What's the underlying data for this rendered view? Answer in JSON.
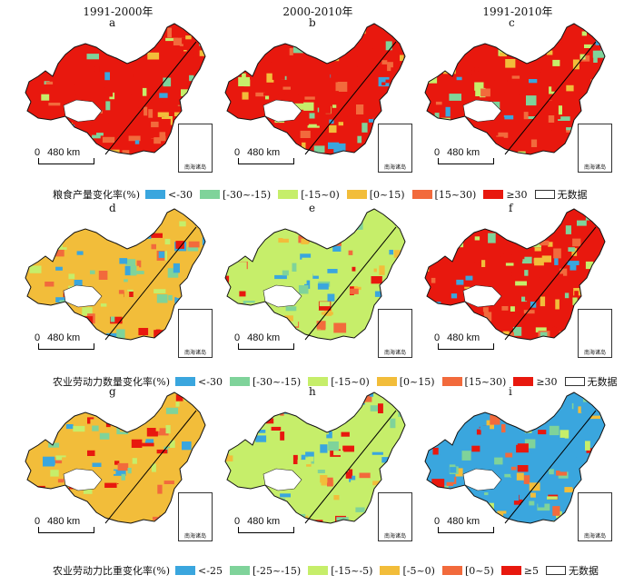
{
  "column_headers": [
    "1991-2000年",
    "2000-2010年",
    "1991-2010年"
  ],
  "colors": {
    "lt_m30": "#3aa6de",
    "m30_m15": "#7fd39a",
    "m15_0": "#c6ee6a",
    "p0_15": "#f2bd3a",
    "p15_30": "#f26a3c",
    "ge30": "#e8180e",
    "nodata": "#ffffff"
  },
  "scale_label": "480 km",
  "scale_zero": "0",
  "inset_label": "南海诸岛",
  "panels": [
    {
      "letter": "a",
      "row": 0,
      "col": 0,
      "dominant": "ge30"
    },
    {
      "letter": "b",
      "row": 0,
      "col": 1,
      "dominant": "ge30"
    },
    {
      "letter": "c",
      "row": 0,
      "col": 2,
      "dominant": "ge30"
    },
    {
      "letter": "d",
      "row": 1,
      "col": 0,
      "dominant": "p0_15"
    },
    {
      "letter": "e",
      "row": 1,
      "col": 1,
      "dominant": "m15_0"
    },
    {
      "letter": "f",
      "row": 1,
      "col": 2,
      "dominant": "ge30"
    },
    {
      "letter": "g",
      "row": 2,
      "col": 0,
      "dominant": "p0_15"
    },
    {
      "letter": "h",
      "row": 2,
      "col": 1,
      "dominant": "m15_0"
    },
    {
      "letter": "i",
      "row": 2,
      "col": 2,
      "dominant": "lt_m30"
    }
  ],
  "legends": [
    {
      "title": "粮食产量变化率(%)",
      "items": [
        {
          "label": "<-30",
          "color": "#3aa6de"
        },
        {
          "label": "[-30~-15)",
          "color": "#7fd39a"
        },
        {
          "label": "[-15~0)",
          "color": "#c6ee6a"
        },
        {
          "label": "[0~15)",
          "color": "#f2bd3a"
        },
        {
          "label": "[15~30)",
          "color": "#f26a3c"
        },
        {
          "label": "≥30",
          "color": "#e8180e"
        },
        {
          "label": "无数据",
          "color": "nodata"
        }
      ]
    },
    {
      "title": "农业劳动力数量变化率(%)",
      "items": [
        {
          "label": "<-30",
          "color": "#3aa6de"
        },
        {
          "label": "[-30~-15)",
          "color": "#7fd39a"
        },
        {
          "label": "[-15~0)",
          "color": "#c6ee6a"
        },
        {
          "label": "[0~15)",
          "color": "#f2bd3a"
        },
        {
          "label": "[15~30)",
          "color": "#f26a3c"
        },
        {
          "label": "≥30",
          "color": "#e8180e"
        },
        {
          "label": "无数据",
          "color": "nodata"
        }
      ]
    },
    {
      "title": "农业劳动力比重变化率(%)",
      "items": [
        {
          "label": "<-25",
          "color": "#3aa6de"
        },
        {
          "label": "[-25~-15)",
          "color": "#7fd39a"
        },
        {
          "label": "[-15~-5)",
          "color": "#c6ee6a"
        },
        {
          "label": "[-5~0)",
          "color": "#f2bd3a"
        },
        {
          "label": "[0~5)",
          "color": "#f26a3c"
        },
        {
          "label": "≥5",
          "color": "#e8180e"
        },
        {
          "label": "无数据",
          "color": "nodata"
        }
      ]
    }
  ]
}
